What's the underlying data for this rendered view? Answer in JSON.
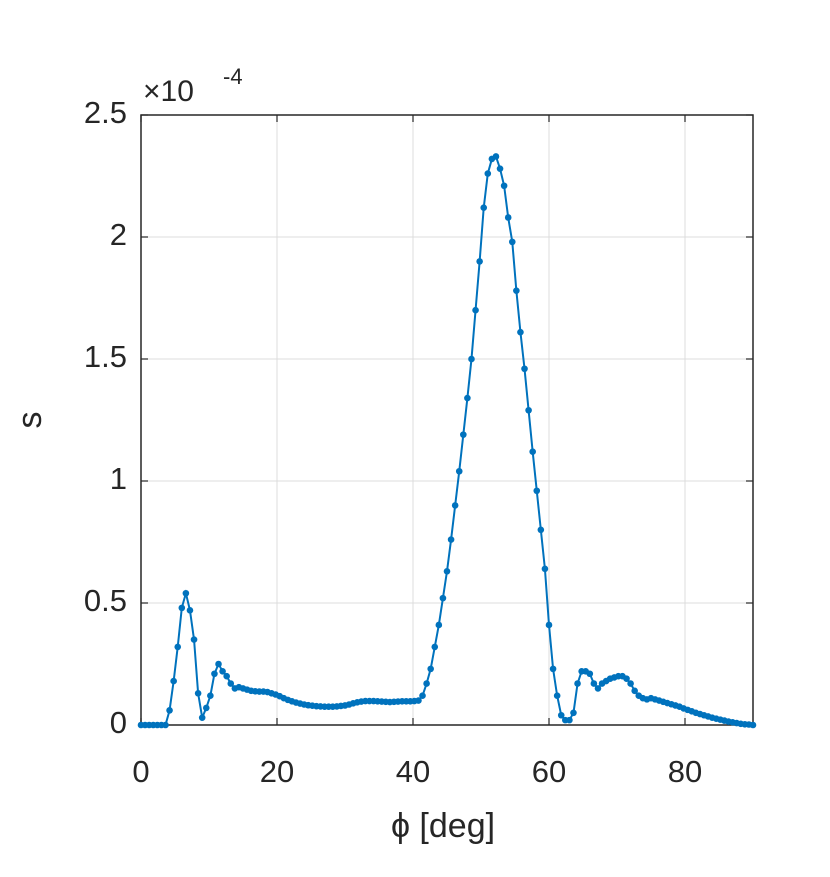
{
  "chart_data": {
    "type": "line",
    "xlabel": "ϕ [deg]",
    "ylabel": "s",
    "y_multiplier": {
      "base": "×10",
      "exponent": "-4"
    },
    "xlim": [
      0,
      90
    ],
    "xticks": [
      0,
      20,
      40,
      60,
      80
    ],
    "ylim": [
      0,
      2.5
    ],
    "yticks": [
      0,
      0.5,
      1,
      1.5,
      2,
      2.5
    ],
    "grid": true,
    "markers": true,
    "x": [
      0,
      0.6,
      1.2,
      1.8,
      2.4,
      3,
      3.6,
      4.2,
      4.8,
      5.4,
      6,
      6.6,
      7.2,
      7.8,
      8.4,
      9,
      9.6,
      10.2,
      10.8,
      11.4,
      12,
      12.6,
      13.2,
      13.8,
      14.4,
      15,
      15.6,
      16.2,
      16.8,
      17.4,
      18,
      18.6,
      19.2,
      19.8,
      20.4,
      21,
      21.6,
      22.2,
      22.8,
      23.4,
      24,
      24.6,
      25.2,
      25.8,
      26.4,
      27,
      27.6,
      28.2,
      28.8,
      29.4,
      30,
      30.6,
      31.2,
      31.8,
      32.4,
      33,
      33.6,
      34.2,
      34.8,
      35.4,
      36,
      36.6,
      37.2,
      37.8,
      38.4,
      39,
      39.6,
      40.2,
      40.8,
      41.4,
      42,
      42.6,
      43.2,
      43.8,
      44.4,
      45,
      45.6,
      46.2,
      46.8,
      47.4,
      48,
      48.6,
      49.2,
      49.8,
      50.4,
      51,
      51.6,
      52.2,
      52.8,
      53.4,
      54,
      54.6,
      55.2,
      55.8,
      56.4,
      57,
      57.6,
      58.2,
      58.8,
      59.4,
      60,
      60.6,
      61.2,
      61.8,
      62.4,
      63,
      63.6,
      64.2,
      64.8,
      65.4,
      66,
      66.6,
      67.2,
      67.8,
      68.4,
      69,
      69.6,
      70.2,
      70.8,
      71.4,
      72,
      72.6,
      73.2,
      73.8,
      74.4,
      75,
      75.6,
      76.2,
      76.8,
      77.4,
      78,
      78.6,
      79.2,
      79.8,
      80.4,
      81,
      81.6,
      82.2,
      82.8,
      83.4,
      84,
      84.6,
      85.2,
      85.8,
      86.4,
      87,
      87.6,
      88.2,
      88.8,
      89.4,
      90
    ],
    "series": [
      {
        "color": "#0072bd",
        "values": [
          0,
          0,
          0,
          0,
          0,
          0,
          0,
          0.06,
          0.18,
          0.32,
          0.48,
          0.54,
          0.47,
          0.35,
          0.13,
          0.03,
          0.07,
          0.12,
          0.21,
          0.25,
          0.22,
          0.2,
          0.17,
          0.15,
          0.155,
          0.15,
          0.145,
          0.14,
          0.138,
          0.137,
          0.137,
          0.135,
          0.13,
          0.125,
          0.118,
          0.11,
          0.103,
          0.097,
          0.092,
          0.088,
          0.084,
          0.081,
          0.079,
          0.077,
          0.076,
          0.075,
          0.075,
          0.075,
          0.076,
          0.078,
          0.08,
          0.084,
          0.089,
          0.093,
          0.096,
          0.098,
          0.098,
          0.098,
          0.097,
          0.096,
          0.095,
          0.094,
          0.095,
          0.096,
          0.097,
          0.097,
          0.097,
          0.098,
          0.1,
          0.12,
          0.17,
          0.23,
          0.32,
          0.41,
          0.52,
          0.63,
          0.76,
          0.9,
          1.04,
          1.19,
          1.34,
          1.5,
          1.7,
          1.9,
          2.12,
          2.26,
          2.32,
          2.33,
          2.28,
          2.21,
          2.08,
          1.98,
          1.78,
          1.61,
          1.46,
          1.29,
          1.12,
          0.96,
          0.8,
          0.64,
          0.41,
          0.23,
          0.12,
          0.04,
          0.02,
          0.02,
          0.05,
          0.17,
          0.22,
          0.22,
          0.21,
          0.17,
          0.15,
          0.17,
          0.18,
          0.19,
          0.195,
          0.2,
          0.2,
          0.19,
          0.17,
          0.14,
          0.12,
          0.11,
          0.105,
          0.11,
          0.105,
          0.1,
          0.095,
          0.09,
          0.085,
          0.08,
          0.075,
          0.068,
          0.062,
          0.056,
          0.05,
          0.045,
          0.04,
          0.035,
          0.03,
          0.026,
          0.022,
          0.018,
          0.014,
          0.011,
          0.008,
          0.005,
          0.003,
          0.002,
          0
        ]
      }
    ]
  }
}
